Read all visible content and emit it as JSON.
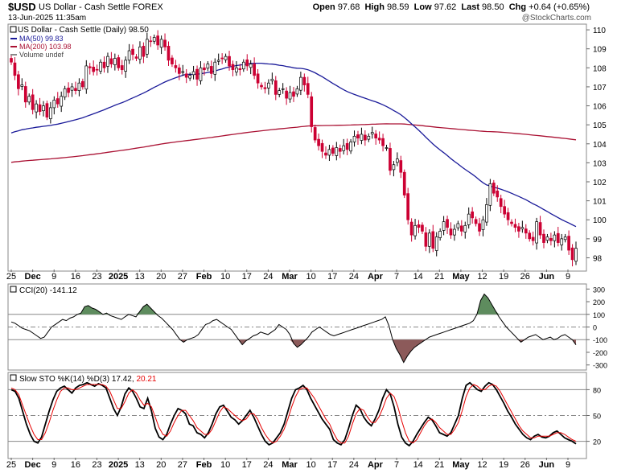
{
  "header": {
    "symbol": "$USD",
    "description": "US Dollar - Cash Settle FOREX",
    "datetime": "13-Jun-2025 11:35am",
    "open_label": "Open",
    "open": "97.68",
    "high_label": "High",
    "high": "98.59",
    "low_label": "Low",
    "low": "97.62",
    "last_label": "Last",
    "last": "98.50",
    "chg_label": "Chg",
    "chg": "+0.64 (+0.65%)",
    "watermark": "@StockCharts.com"
  },
  "colors": {
    "up": "#ffffff",
    "down": "#cc0033",
    "ma50": "#1a1a99",
    "ma200": "#aa1133",
    "cci_fill": "#8c5a5a",
    "cci_fill_pos": "#5e8c5e",
    "stoch_k": "#000000",
    "stoch_d": "#e60000"
  },
  "chart_data": [
    {
      "type": "candlestick",
      "title": "US Dollar - Cash Settle (Daily) 98.50",
      "legend": [
        {
          "name": "MA(50) 99.83",
          "color": "#1a1a99"
        },
        {
          "name": "MA(200) 103.98",
          "color": "#aa1133"
        },
        {
          "name": "Volume undef",
          "color": "#888888"
        }
      ],
      "ylim": [
        97.3,
        110.3
      ],
      "yticks": [
        98,
        99,
        100,
        101,
        102,
        103,
        104,
        105,
        106,
        107,
        108,
        109,
        110
      ],
      "x_labels": [
        "25",
        "Dec",
        "9",
        "16",
        "23",
        "2025",
        "13",
        "20",
        "27",
        "Feb",
        "10",
        "17",
        "24",
        "Mar",
        "10",
        "17",
        "24",
        "Apr",
        "7",
        "14",
        "21",
        "May",
        "12",
        "19",
        "26",
        "Jun",
        "9"
      ],
      "x_label_bold": [
        "Dec",
        "2025",
        "Feb",
        "Mar",
        "Apr",
        "May",
        "Jun"
      ],
      "closes": [
        108.3,
        107.6,
        106.9,
        107.1,
        106.2,
        106.5,
        105.8,
        106.1,
        105.7,
        106.0,
        105.4,
        105.9,
        106.3,
        106.1,
        106.5,
        106.9,
        106.7,
        107.0,
        106.8,
        107.2,
        107.0,
        108.1,
        108.0,
        107.8,
        107.9,
        108.3,
        108.0,
        108.6,
        108.2,
        108.5,
        108.0,
        107.9,
        108.4,
        108.9,
        108.7,
        108.5,
        109.1,
        108.6,
        109.5,
        109.4,
        109.6,
        109.2,
        109.5,
        109.1,
        108.4,
        108.2,
        108.0,
        107.7,
        107.8,
        107.5,
        107.6,
        107.8,
        107.4,
        108.0,
        107.9,
        108.2,
        107.7,
        108.3,
        108.4,
        108.5,
        108.6,
        108.1,
        107.9,
        108.0,
        107.9,
        108.3,
        108.1,
        108.2,
        107.6,
        107.2,
        107.0,
        106.9,
        107.2,
        107.4,
        106.6,
        106.8,
        106.9,
        106.4,
        106.7,
        106.5,
        106.9,
        107.5,
        107.1,
        106.6,
        104.9,
        104.2,
        103.9,
        103.6,
        103.4,
        103.7,
        103.5,
        103.8,
        103.6,
        103.9,
        103.7,
        104.1,
        104.4,
        104.3,
        104.5,
        104.2,
        104.4,
        104.6,
        104.3,
        104.2,
        103.9,
        103.8,
        102.6,
        102.9,
        103.2,
        102.5,
        101.3,
        100.0,
        99.2,
        99.7,
        99.6,
        99.4,
        98.6,
        99.3,
        98.5,
        99.1,
        99.4,
        99.9,
        99.6,
        99.2,
        99.5,
        99.8,
        99.4,
        99.7,
        100.3,
        100.1,
        99.8,
        99.4,
        100.0,
        100.8,
        101.9,
        101.4,
        101.2,
        100.7,
        100.3,
        100.0,
        99.8,
        99.6,
        99.4,
        99.6,
        99.3,
        99.0,
        98.9,
        99.9,
        99.2,
        98.8,
        99.1,
        98.9,
        99.2,
        98.8,
        99.0,
        99.1,
        98.4,
        97.9,
        98.5
      ]
    },
    {
      "type": "line",
      "title": "CCI(20) -141.12",
      "ylim": [
        -340,
        340
      ],
      "yticks": [
        300,
        200,
        100,
        0,
        -100,
        -200,
        -300
      ],
      "reference_lines": [
        100,
        0,
        -100
      ],
      "values": [
        40,
        30,
        10,
        -10,
        -20,
        -30,
        -50,
        -70,
        -90,
        -80,
        -40,
        0,
        20,
        40,
        60,
        50,
        70,
        80,
        100,
        110,
        160,
        170,
        150,
        140,
        120,
        100,
        110,
        90,
        80,
        70,
        60,
        80,
        100,
        90,
        80,
        120,
        160,
        180,
        150,
        120,
        90,
        70,
        40,
        10,
        -20,
        -60,
        -100,
        -120,
        -100,
        -90,
        -80,
        -60,
        -20,
        20,
        30,
        50,
        60,
        40,
        20,
        0,
        -20,
        -60,
        -100,
        -140,
        -110,
        -90,
        -70,
        -60,
        -40,
        -50,
        -60,
        -40,
        -20,
        20,
        0,
        -20,
        -60,
        -130,
        -160,
        -140,
        -110,
        -80,
        -40,
        -20,
        0,
        -20,
        -40,
        -60,
        -70,
        -60,
        -50,
        -40,
        -30,
        -20,
        -10,
        0,
        10,
        20,
        30,
        40,
        50,
        60,
        80,
        10,
        -100,
        -170,
        -220,
        -280,
        -230,
        -190,
        -160,
        -140,
        -120,
        -100,
        -80,
        -70,
        -60,
        -50,
        -40,
        -30,
        -20,
        -10,
        0,
        10,
        20,
        30,
        50,
        100,
        210,
        260,
        230,
        180,
        130,
        80,
        40,
        0,
        -30,
        -60,
        -90,
        -120,
        -100,
        -80,
        -70,
        -60,
        -80,
        -100,
        -90,
        -80,
        -100,
        -90,
        -70,
        -60,
        -80,
        -100,
        -141
      ]
    },
    {
      "type": "line",
      "title": "Slow STO %K(14) %D(3) 17.42, 20.21",
      "ylim": [
        0,
        100
      ],
      "yticks": [
        80,
        50,
        20
      ],
      "reference_lines": [
        80,
        50,
        20
      ],
      "series": [
        {
          "name": "%K(14)",
          "values": [
            80,
            78,
            70,
            55,
            40,
            28,
            20,
            18,
            25,
            40,
            55,
            68,
            78,
            82,
            84,
            80,
            76,
            82,
            85,
            86,
            88,
            86,
            84,
            87,
            85,
            82,
            70,
            58,
            50,
            60,
            75,
            82,
            78,
            70,
            60,
            58,
            70,
            55,
            35,
            25,
            22,
            28,
            40,
            50,
            58,
            56,
            52,
            40,
            38,
            30,
            28,
            24,
            30,
            40,
            52,
            60,
            62,
            55,
            48,
            45,
            40,
            44,
            50,
            56,
            48,
            38,
            28,
            20,
            16,
            18,
            24,
            30,
            40,
            55,
            70,
            80,
            82,
            85,
            80,
            70,
            62,
            54,
            46,
            40,
            34,
            22,
            18,
            16,
            22,
            35,
            50,
            62,
            58,
            48,
            42,
            38,
            46,
            56,
            70,
            80,
            75,
            60,
            40,
            25,
            18,
            15,
            20,
            28,
            35,
            42,
            48,
            45,
            38,
            30,
            28,
            26,
            30,
            40,
            50,
            70,
            85,
            88,
            84,
            80,
            78,
            84,
            88,
            86,
            80,
            72,
            64,
            55,
            48,
            40,
            34,
            28,
            24,
            22,
            26,
            28,
            25,
            24,
            26,
            30,
            32,
            28,
            24,
            22,
            20,
            17
          ]
        },
        {
          "name": "%D(3)",
          "values": [
            82,
            80,
            74,
            62,
            50,
            38,
            28,
            22,
            22,
            30,
            42,
            56,
            68,
            78,
            82,
            82,
            80,
            80,
            82,
            84,
            86,
            86,
            86,
            86,
            86,
            84,
            78,
            68,
            58,
            58,
            66,
            76,
            80,
            76,
            68,
            62,
            64,
            60,
            48,
            36,
            28,
            26,
            32,
            42,
            50,
            56,
            56,
            50,
            44,
            36,
            32,
            28,
            28,
            34,
            44,
            54,
            60,
            58,
            54,
            50,
            46,
            44,
            46,
            52,
            52,
            46,
            36,
            28,
            22,
            18,
            20,
            26,
            34,
            46,
            60,
            72,
            80,
            82,
            82,
            76,
            70,
            62,
            54,
            46,
            40,
            30,
            22,
            18,
            18,
            26,
            40,
            52,
            58,
            56,
            48,
            42,
            42,
            48,
            58,
            70,
            76,
            72,
            60,
            44,
            30,
            20,
            18,
            22,
            30,
            38,
            44,
            46,
            42,
            36,
            32,
            28,
            28,
            34,
            42,
            56,
            72,
            82,
            86,
            84,
            80,
            80,
            84,
            86,
            84,
            78,
            70,
            62,
            54,
            46,
            38,
            32,
            28,
            24,
            24,
            26,
            26,
            26,
            26,
            28,
            30,
            30,
            28,
            25,
            22,
            20
          ]
        }
      ]
    }
  ]
}
